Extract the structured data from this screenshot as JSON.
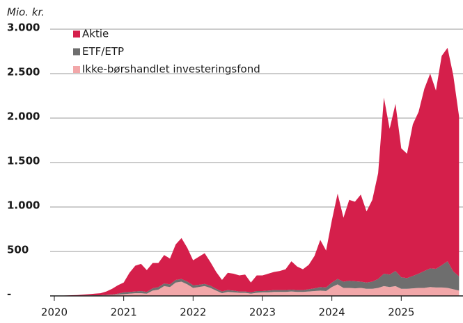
{
  "chart_data": {
    "type": "stacked_area",
    "y_label": "Mio. kr.",
    "x": [
      2020,
      2020.083,
      2020.167,
      2020.25,
      2020.333,
      2020.417,
      2020.5,
      2020.583,
      2020.667,
      2020.75,
      2020.833,
      2020.917,
      2021,
      2021.083,
      2021.167,
      2021.25,
      2021.333,
      2021.417,
      2021.5,
      2021.583,
      2021.667,
      2021.75,
      2021.833,
      2021.917,
      2022,
      2022.083,
      2022.167,
      2022.25,
      2022.333,
      2022.417,
      2022.5,
      2022.583,
      2022.667,
      2022.75,
      2022.833,
      2022.917,
      2023,
      2023.083,
      2023.167,
      2023.25,
      2023.333,
      2023.417,
      2023.5,
      2023.583,
      2023.667,
      2023.75,
      2023.833,
      2023.917,
      2024,
      2024.083,
      2024.167,
      2024.25,
      2024.333,
      2024.417,
      2024.5,
      2024.583,
      2024.667,
      2024.75,
      2024.833,
      2024.917,
      2025,
      2025.083,
      2025.167,
      2025.25,
      2025.333,
      2025.417,
      2025.5,
      2025.583,
      2025.667,
      2025.75,
      2025.833
    ],
    "series": [
      {
        "name": "Ikke-børshandlet investeringsfond",
        "color": "#f2a7a9",
        "values": [
          0,
          0,
          1,
          2,
          2,
          3,
          5,
          5,
          5,
          8,
          10,
          15,
          20,
          25,
          30,
          30,
          25,
          60,
          70,
          110,
          100,
          150,
          160,
          130,
          90,
          100,
          110,
          90,
          60,
          30,
          45,
          40,
          35,
          35,
          25,
          35,
          40,
          40,
          45,
          45,
          45,
          50,
          45,
          45,
          50,
          55,
          60,
          55,
          100,
          130,
          90,
          90,
          85,
          90,
          80,
          80,
          90,
          110,
          100,
          110,
          80,
          80,
          85,
          90,
          90,
          100,
          95,
          95,
          90,
          75,
          60
        ]
      },
      {
        "name": "ETF/ETP",
        "color": "#6e6e6e",
        "values": [
          0,
          0,
          0,
          1,
          1,
          2,
          2,
          3,
          3,
          5,
          5,
          10,
          20,
          20,
          20,
          25,
          20,
          25,
          30,
          30,
          30,
          30,
          30,
          30,
          30,
          25,
          25,
          25,
          20,
          20,
          20,
          20,
          15,
          15,
          15,
          20,
          15,
          20,
          20,
          20,
          20,
          20,
          20,
          20,
          25,
          30,
          40,
          40,
          50,
          60,
          70,
          80,
          80,
          70,
          70,
          80,
          100,
          140,
          140,
          170,
          130,
          120,
          140,
          160,
          190,
          210,
          210,
          250,
          300,
          200,
          160
        ]
      },
      {
        "name": "Aktie",
        "color": "#d51f4b",
        "values": [
          2,
          3,
          4,
          5,
          7,
          10,
          13,
          17,
          22,
          37,
          65,
          95,
          110,
          215,
          290,
          305,
          245,
          285,
          270,
          320,
          290,
          400,
          460,
          380,
          280,
          315,
          345,
          265,
          190,
          130,
          195,
          190,
          180,
          190,
          110,
          175,
          175,
          190,
          205,
          215,
          235,
          320,
          265,
          235,
          275,
          365,
          530,
          415,
          700,
          960,
          720,
          910,
          895,
          980,
          800,
          920,
          1190,
          1980,
          1640,
          1880,
          1450,
          1400,
          1705,
          1820,
          2050,
          2190,
          2005,
          2355,
          2400,
          2205,
          1800
        ]
      }
    ],
    "legend_order": [
      2,
      1,
      0
    ],
    "xlim": [
      2020,
      2025.89
    ],
    "xticks": [
      2020,
      2021,
      2022,
      2023,
      2024,
      2025
    ],
    "ylim": [
      0,
      3000
    ],
    "yticks": [
      {
        "value": 0,
        "label": "-"
      },
      500,
      {
        "value": 1000,
        "label": "1.000"
      },
      {
        "value": 1500,
        "label": "1.500"
      },
      {
        "value": 2000,
        "label": "2.000"
      },
      {
        "value": 2500,
        "label": "2.500"
      },
      {
        "value": 3000,
        "label": "3.000"
      }
    ],
    "grid": true
  }
}
